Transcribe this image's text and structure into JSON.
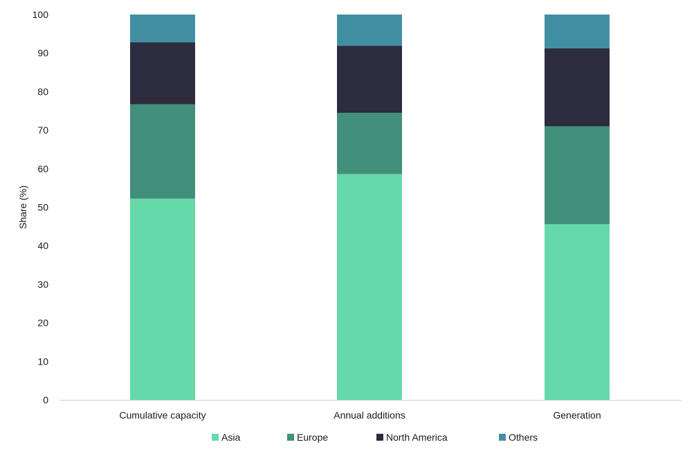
{
  "chart_data": {
    "type": "bar",
    "stacked": true,
    "categories": [
      "Cumulative capacity",
      "Annual additions",
      "Generation"
    ],
    "series": [
      {
        "name": "Asia",
        "color": "#66d9a8",
        "values": [
          52.2,
          58.6,
          45.6
        ]
      },
      {
        "name": "Europe",
        "color": "#42907b",
        "values": [
          24.5,
          15.9,
          25.4
        ]
      },
      {
        "name": "North America",
        "color": "#2d2b3e",
        "values": [
          16.1,
          17.4,
          20.2
        ]
      },
      {
        "name": "Others",
        "color": "#418fa3",
        "values": [
          7.2,
          8.1,
          8.8
        ]
      }
    ],
    "title": "",
    "xlabel": "",
    "ylabel": "Share (%)",
    "ylim": [
      0,
      100
    ],
    "yticks": [
      "0",
      "10",
      "20",
      "30",
      "40",
      "50",
      "60",
      "70",
      "80",
      "90",
      "100"
    ],
    "grid": false,
    "legend": "bottom"
  }
}
